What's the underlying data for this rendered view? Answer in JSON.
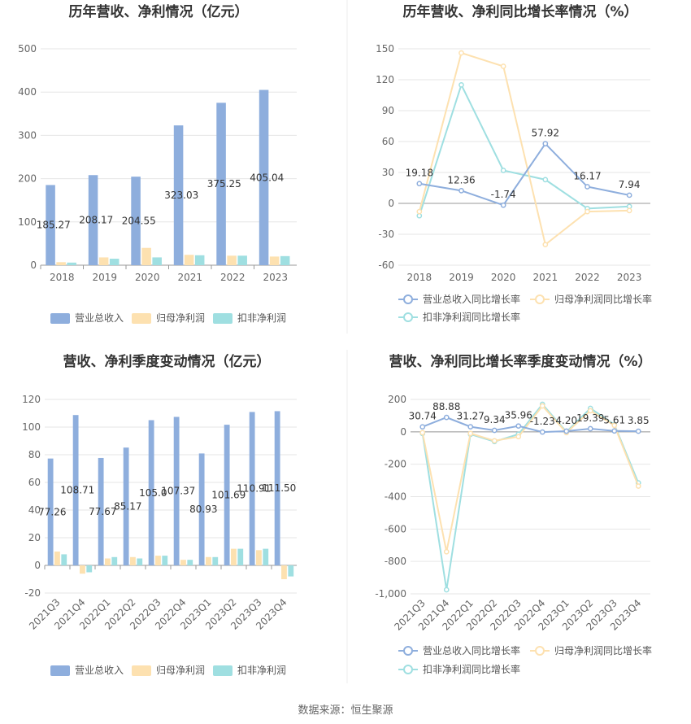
{
  "source_label": "数据来源：恒生聚源",
  "colors": {
    "revenue": "#8eaedd",
    "net": "#fde1b0",
    "deduct": "#9fdfe1",
    "axis": "#999999",
    "grid": "#e6e6e6"
  },
  "chart_data": [
    {
      "type": "bar",
      "title": "历年营收、净利情况（亿元）",
      "categories": [
        "2018",
        "2019",
        "2020",
        "2021",
        "2022",
        "2023"
      ],
      "ylim": [
        0,
        500
      ],
      "yticks": [
        "500",
        "400",
        "300",
        "200",
        "100",
        "0"
      ],
      "series": [
        {
          "name": "营业总收入",
          "values": [
            185.27,
            208.17,
            204.55,
            323.03,
            375.25,
            405.04
          ],
          "labels": [
            "185.27",
            "208.17",
            "204.55",
            "323.03",
            "375.25",
            "405.04"
          ]
        },
        {
          "name": "归母净利润",
          "values": [
            7,
            18,
            40,
            24,
            22,
            20
          ]
        },
        {
          "name": "扣非净利润",
          "values": [
            6,
            15,
            18,
            23,
            22,
            21
          ]
        }
      ]
    },
    {
      "type": "line",
      "title": "历年营收、净利同比增长率情况（%）",
      "categories": [
        "2018",
        "2019",
        "2020",
        "2021",
        "2022",
        "2023"
      ],
      "ylim": [
        -60,
        150
      ],
      "yticks": [
        "150",
        "120",
        "90",
        "60",
        "30",
        "0",
        "-30",
        "-60"
      ],
      "series": [
        {
          "name": "营业总收入同比增长率",
          "values": [
            19.18,
            12.36,
            -1.74,
            57.92,
            16.17,
            7.94
          ],
          "labels": [
            "19.18",
            "12.36",
            "-1.74",
            "57.92",
            "16.17",
            "7.94"
          ]
        },
        {
          "name": "归母净利润同比增长率",
          "values": [
            -8,
            146,
            133,
            -40,
            -8,
            -7
          ]
        },
        {
          "name": "扣非净利润同比增长率",
          "values": [
            -12,
            115,
            32,
            23,
            -5,
            -3
          ]
        }
      ]
    },
    {
      "type": "bar",
      "title": "营收、净利季度变动情况（亿元）",
      "categories": [
        "2021Q3",
        "2021Q4",
        "2022Q1",
        "2022Q2",
        "2022Q3",
        "2022Q4",
        "2023Q1",
        "2023Q2",
        "2023Q3",
        "2023Q4"
      ],
      "ylim": [
        -20,
        120
      ],
      "yticks": [
        "120",
        "100",
        "80",
        "60",
        "40",
        "20",
        "0",
        "-20"
      ],
      "series": [
        {
          "name": "营业总收入",
          "values": [
            77.26,
            108.71,
            77.67,
            85.17,
            105.0,
            107.37,
            80.93,
            101.69,
            110.91,
            111.5
          ],
          "labels": [
            "77.26",
            "108.71",
            "77.67",
            "85.17",
            "105.0",
            "107.37",
            "80.93",
            "101.69",
            "110.91",
            "111.50"
          ]
        },
        {
          "name": "归母净利润",
          "values": [
            10,
            -6,
            5,
            6,
            7,
            4,
            6,
            12,
            11,
            -10
          ]
        },
        {
          "name": "扣非净利润",
          "values": [
            8,
            -5,
            6,
            5,
            7,
            4,
            6,
            12,
            12,
            -8
          ]
        }
      ]
    },
    {
      "type": "line",
      "title": "营收、净利同比增长率季度变动情况（%）",
      "categories": [
        "2021Q3",
        "2021Q4",
        "2022Q1",
        "2022Q2",
        "2022Q3",
        "2022Q4",
        "2023Q1",
        "2023Q2",
        "2023Q3",
        "2023Q4"
      ],
      "ylim": [
        -1000,
        200
      ],
      "yticks": [
        "200",
        "0",
        "-200",
        "-400",
        "-600",
        "-800",
        "-1,000"
      ],
      "series": [
        {
          "name": "营业总收入同比增长率",
          "values": [
            30.74,
            88.88,
            31.27,
            9.34,
            35.96,
            -1.23,
            4.2,
            19.39,
            5.61,
            3.85
          ],
          "labels": [
            "30.74",
            "88.88",
            "31.27",
            "9.34",
            "35.96",
            "-1.23",
            "4.20",
            "19.39",
            "5.61",
            "3.85"
          ]
        },
        {
          "name": "归母净利润同比增长率",
          "values": [
            -5,
            -740,
            -10,
            -55,
            -30,
            160,
            -5,
            130,
            40,
            -335
          ]
        },
        {
          "name": "扣非净利润同比增长率",
          "values": [
            -10,
            -975,
            -15,
            -60,
            -15,
            170,
            0,
            145,
            45,
            -315
          ]
        }
      ]
    }
  ]
}
